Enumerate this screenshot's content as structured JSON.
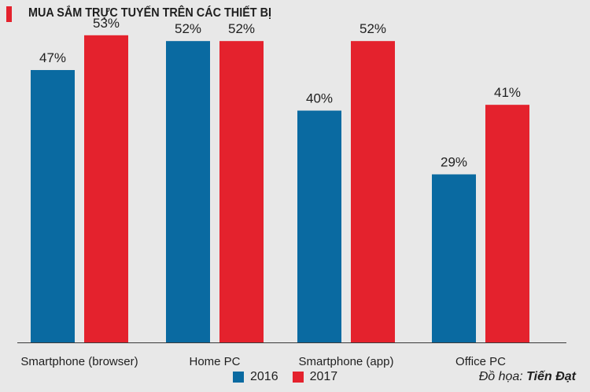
{
  "header": {
    "title": "MUA SẮM TRỰC TUYẾN TRÊN CÁC THIẾT BỊ"
  },
  "credit": {
    "prefix": "Đồ họa: ",
    "author": "Tiến Đạt"
  },
  "colors": {
    "series_2016": "#0a6aa1",
    "series_2017": "#e4222d",
    "background": "#e8e8e8",
    "axis": "#3a3a3a"
  },
  "chart_data": {
    "type": "bar",
    "title": "MUA SẮM TRỰC TUYẾN TRÊN CÁC THIẾT BỊ",
    "categories": [
      "Smartphone (browser)",
      "Home PC",
      "Smartphone (app)",
      "Office PC"
    ],
    "series": [
      {
        "name": "2016",
        "values": [
          47,
          52,
          40,
          29
        ],
        "labels": [
          "47%",
          "52%",
          "40%",
          "29%"
        ]
      },
      {
        "name": "2017",
        "values": [
          53,
          52,
          52,
          41
        ],
        "labels": [
          "53%",
          "52%",
          "52%",
          "41%"
        ]
      }
    ],
    "xlabel": "",
    "ylabel": "",
    "ylim": [
      0,
      58
    ],
    "grid": false,
    "legend": "bottom-center"
  }
}
